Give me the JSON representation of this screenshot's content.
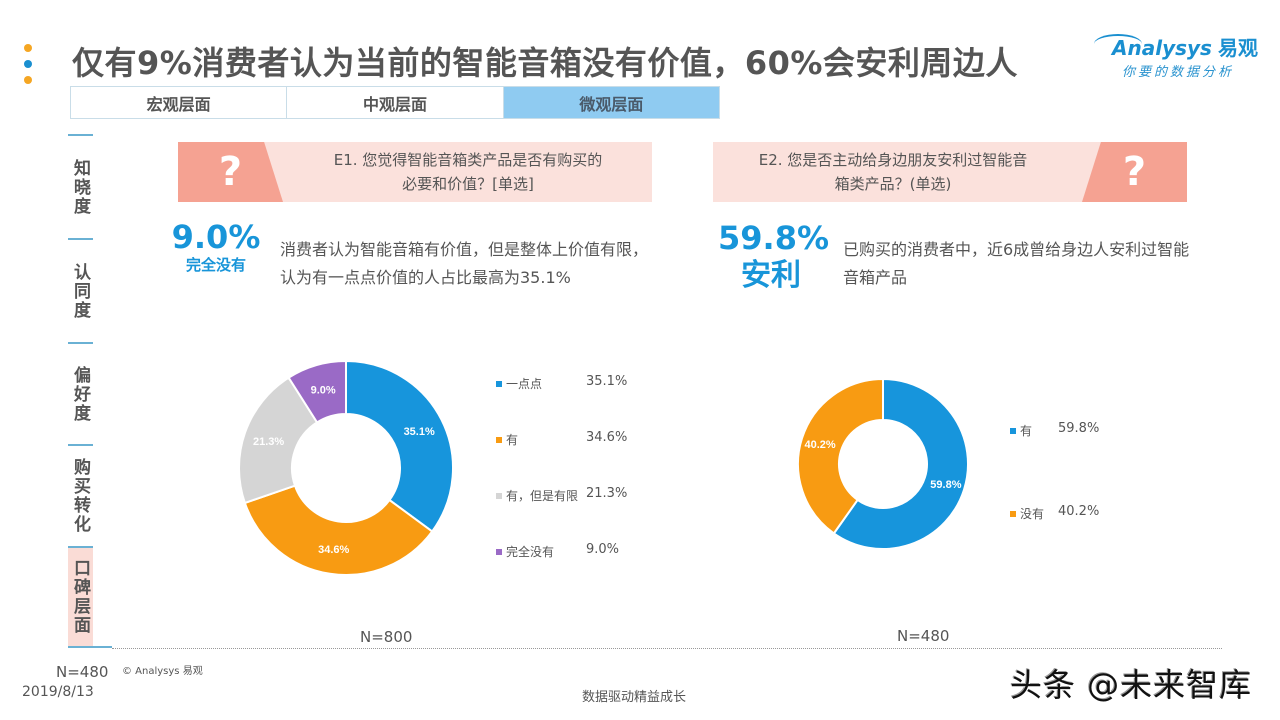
{
  "header": {
    "title": "仅有9%消费者认为当前的智能音箱没有价值，60%会安利周边人",
    "dots_colors": [
      "#f5a623",
      "#1a8fd0",
      "#f5a623"
    ],
    "logo": {
      "brand": "Analysys",
      "brand_cn": "易观",
      "slogan": "你要的数据分析"
    }
  },
  "tabs": [
    {
      "label": "宏观层面",
      "active": false
    },
    {
      "label": "中观层面",
      "active": false
    },
    {
      "label": "微观层面",
      "active": true
    }
  ],
  "sidebar": {
    "items": [
      {
        "label": "知晓度",
        "active": false
      },
      {
        "label": "认同度",
        "active": false
      },
      {
        "label": "偏好度",
        "active": false
      },
      {
        "label": "购买转化",
        "active": false
      },
      {
        "label": "口碑层面",
        "active": true
      }
    ]
  },
  "left": {
    "question_mark": "?",
    "question": "E1. 您觉得智能音箱类产品是否有购买的必要和价值？[单选]",
    "question_line1": "E1. 您觉得智能音箱类产品是否有购买的",
    "question_line2": "必要和价值？[单选]",
    "highlight_value": "9.0%",
    "highlight_label": "完全没有",
    "description": "消费者认为智能音箱有价值，但是整体上价值有限，认为有一点点价值的人占比最高为35.1%",
    "sample": "N=800"
  },
  "right": {
    "question_mark": "?",
    "question_line1": "E2. 您是否主动给身边朋友安利过智能音",
    "question_line2": "箱类产品？(单选)",
    "highlight_value": "59.8%",
    "highlight_label": "安利",
    "description": "已购买的消费者中，近6成曾给身边人安利过智能音箱产品",
    "sample": "N=480"
  },
  "chart_data": [
    {
      "type": "pie",
      "title": "E1. 您觉得智能音箱类产品是否有购买的必要和价值？[单选]",
      "donut": true,
      "categories": [
        "一点点",
        "有",
        "有，但是有限",
        "完全没有"
      ],
      "values": [
        35.1,
        34.6,
        21.3,
        9.0
      ],
      "labels": [
        "35.1%",
        "34.6%",
        "21.3%",
        "9.0%"
      ],
      "colors": [
        "#1795dc",
        "#f89b12",
        "#d5d5d5",
        "#9a6ac6"
      ],
      "legend_position": "right",
      "n": "N=800"
    },
    {
      "type": "pie",
      "title": "E2. 您是否主动给身边朋友安利过智能音箱类产品？(单选)",
      "donut": true,
      "categories": [
        "有",
        "没有"
      ],
      "values": [
        59.8,
        40.2
      ],
      "labels": [
        "59.8%",
        "40.2%"
      ],
      "colors": [
        "#1795dc",
        "#f89b12"
      ],
      "legend_position": "right",
      "n": "N=480"
    }
  ],
  "footer": {
    "sample_note": "N=480",
    "date": "2019/8/13",
    "copyright": "© Analysys 易观",
    "slogan": "数据驱动精益成长",
    "watermark": "头条 @未来智库"
  }
}
